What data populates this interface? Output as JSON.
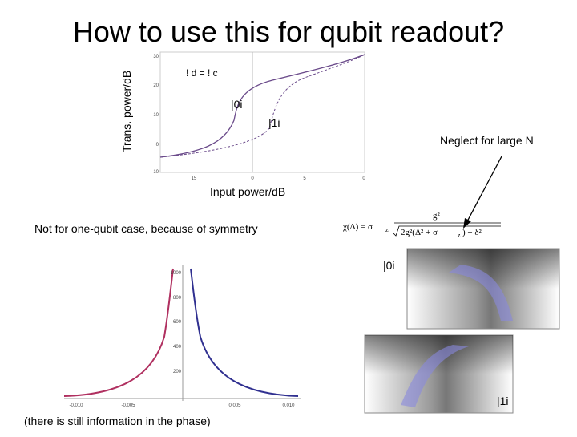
{
  "title": "How to use this for qubit readout?",
  "top_plot": {
    "y_label": "Trans. power/dB",
    "x_label": "Input power/dB",
    "annotation": "! d = ! c",
    "state_0": "|0i",
    "state_1": "|1i",
    "yticks": [
      "30",
      "20",
      "10",
      "0",
      "-10"
    ],
    "xticks": [
      "15",
      "0",
      "5",
      "0"
    ]
  },
  "neglect_note": "Neglect for large N",
  "symmetry_note": "Not for one-qubit case, because of symmetry",
  "formula": {
    "lhs": "χ(Δ) = σ",
    "lhs_sub": "z",
    "numerator": "g²",
    "denominator": "2g²(Δ² + σ",
    "den_sub": "z",
    "den_tail": ") + δ²"
  },
  "bottom_plot": {
    "yticks": [
      "1000",
      "800",
      "600",
      "400",
      "200"
    ],
    "xticks": [
      "-0.010",
      "-0.005",
      "0.005",
      "0.010"
    ]
  },
  "image_labels": [
    "|0i",
    "|1i"
  ],
  "phase_note": "(there is still information in the phase)"
}
